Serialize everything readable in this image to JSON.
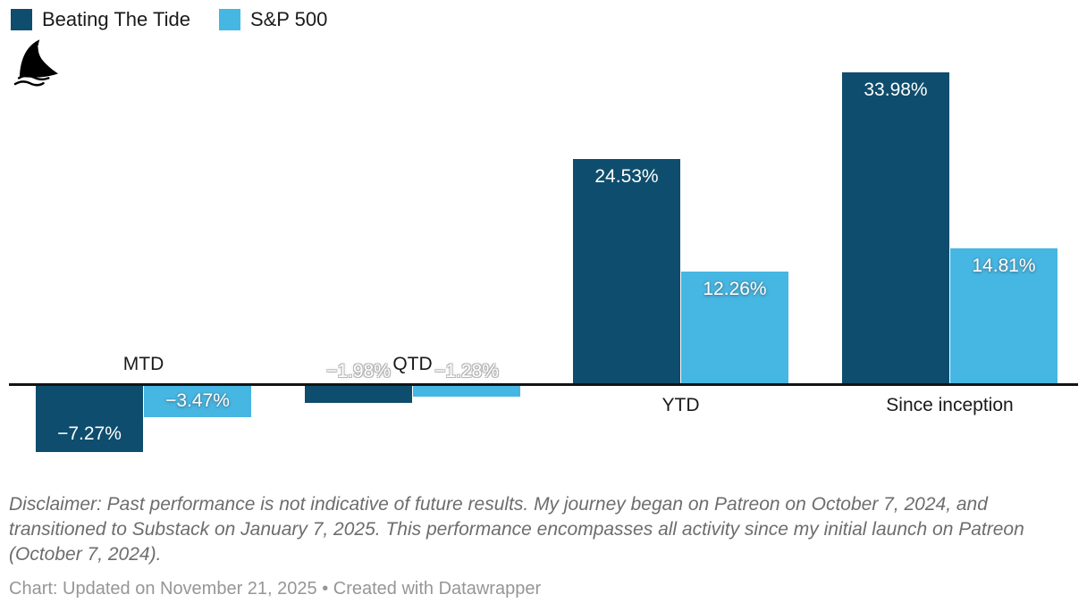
{
  "legend": {
    "items": [
      {
        "label": "Beating The Tide",
        "color": "#0e4d6d"
      },
      {
        "label": "S&P 500",
        "color": "#46b6e3"
      }
    ]
  },
  "logo": {
    "name": "shark-fin-logo"
  },
  "chart_data": {
    "type": "bar",
    "categories": [
      "MTD",
      "QTD",
      "YTD",
      "Since inception"
    ],
    "series": [
      {
        "name": "Beating The Tide",
        "color": "#0e4d6d",
        "values": [
          -7.27,
          -1.98,
          24.53,
          33.98
        ],
        "labels": [
          "−7.27%",
          "−1.98%",
          "24.53%",
          "33.98%"
        ]
      },
      {
        "name": "S&P 500",
        "color": "#46b6e3",
        "values": [
          -3.47,
          -1.28,
          12.26,
          14.81
        ],
        "labels": [
          "−3.47%",
          "−1.28%",
          "12.26%",
          "14.81%"
        ]
      }
    ],
    "value_suffix": "%",
    "baseline": 0,
    "ylim": [
      -8,
      34
    ],
    "grid": false,
    "legend_position": "top-left",
    "axis_color": "#141414"
  },
  "footer": {
    "disclaimer": "Disclaimer: Past performance is not indicative of future results. My journey began on Patreon on October 7, 2024, and transitioned to Substack on January 7, 2025. This performance encompasses all activity since my initial launch on Patreon (October 7, 2024).",
    "credit": "Chart: Updated on November 21, 2025 • Created with Datawrapper"
  }
}
